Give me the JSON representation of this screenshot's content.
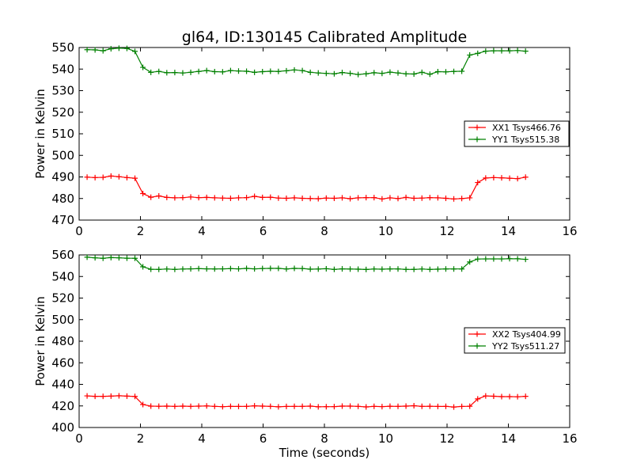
{
  "chart_data": [
    {
      "type": "line",
      "title": "gl64, ID:130145 Calibrated Amplitude",
      "xlabel": "",
      "ylabel": "Power in Kelvin",
      "xlim": [
        0,
        16
      ],
      "ylim": [
        470,
        550
      ],
      "xticks": [
        "0",
        "2",
        "4",
        "6",
        "8",
        "10",
        "12",
        "14",
        "16"
      ],
      "yticks": [
        "470",
        "480",
        "490",
        "500",
        "510",
        "520",
        "530",
        "540",
        "550"
      ],
      "legend_position": "center-right",
      "x": [
        0.26,
        0.52,
        0.78,
        1.04,
        1.3,
        1.56,
        1.82,
        2.08,
        2.34,
        2.6,
        2.86,
        3.12,
        3.38,
        3.64,
        3.9,
        4.16,
        4.42,
        4.68,
        4.94,
        5.2,
        5.46,
        5.72,
        5.98,
        6.24,
        6.5,
        6.76,
        7.02,
        7.28,
        7.54,
        7.8,
        8.06,
        8.32,
        8.58,
        8.84,
        9.1,
        9.36,
        9.62,
        9.88,
        10.14,
        10.4,
        10.66,
        10.92,
        11.18,
        11.44,
        11.7,
        11.96,
        12.22,
        12.48,
        12.74,
        13.0,
        13.26,
        13.52,
        13.78,
        14.04,
        14.3,
        14.56
      ],
      "series": [
        {
          "name": "XX1 Tsys466.76",
          "color": "#ff0000",
          "values": [
            489.9,
            489.7,
            489.8,
            490.4,
            490.1,
            489.7,
            489.4,
            482.3,
            480.6,
            481.2,
            480.5,
            480.3,
            480.4,
            480.7,
            480.4,
            480.5,
            480.3,
            480.2,
            480.1,
            480.3,
            480.4,
            481.0,
            480.5,
            480.6,
            480.2,
            480.1,
            480.3,
            480.1,
            480.0,
            479.9,
            480.2,
            480.1,
            480.3,
            479.9,
            480.3,
            480.4,
            480.4,
            479.8,
            480.3,
            480.0,
            480.5,
            480.1,
            480.2,
            480.4,
            480.3,
            480.1,
            479.8,
            480.0,
            480.3,
            487.4,
            489.5,
            489.7,
            489.6,
            489.4,
            489.2,
            489.9
          ]
        },
        {
          "name": "YY1 Tsys515.38",
          "color": "#008000",
          "values": [
            549.0,
            548.9,
            548.5,
            549.4,
            549.7,
            549.6,
            548.2,
            540.8,
            538.5,
            538.9,
            538.3,
            538.4,
            538.2,
            538.5,
            538.9,
            539.3,
            538.8,
            538.7,
            539.3,
            539.1,
            539.0,
            538.5,
            538.8,
            539.0,
            538.9,
            539.2,
            539.6,
            539.3,
            538.5,
            538.2,
            538.0,
            537.8,
            538.4,
            538.0,
            537.5,
            537.8,
            538.3,
            538.0,
            538.6,
            538.2,
            537.8,
            537.7,
            538.5,
            537.6,
            538.8,
            538.7,
            538.9,
            539.0,
            546.5,
            547.3,
            548.3,
            548.5,
            548.5,
            548.5,
            548.6,
            548.3
          ]
        }
      ]
    },
    {
      "type": "line",
      "title": "",
      "xlabel": "Time (seconds)",
      "ylabel": "Power in Kelvin",
      "xlim": [
        0,
        16
      ],
      "ylim": [
        400,
        560
      ],
      "xticks": [
        "0",
        "2",
        "4",
        "6",
        "8",
        "10",
        "12",
        "14",
        "16"
      ],
      "yticks": [
        "400",
        "420",
        "440",
        "460",
        "480",
        "500",
        "520",
        "540",
        "560"
      ],
      "legend_position": "center-right",
      "x": [
        0.26,
        0.52,
        0.78,
        1.04,
        1.3,
        1.56,
        1.82,
        2.08,
        2.34,
        2.6,
        2.86,
        3.12,
        3.38,
        3.64,
        3.9,
        4.16,
        4.42,
        4.68,
        4.94,
        5.2,
        5.46,
        5.72,
        5.98,
        6.24,
        6.5,
        6.76,
        7.02,
        7.28,
        7.54,
        7.8,
        8.06,
        8.32,
        8.58,
        8.84,
        9.1,
        9.36,
        9.62,
        9.88,
        10.14,
        10.4,
        10.66,
        10.92,
        11.18,
        11.44,
        11.7,
        11.96,
        12.22,
        12.48,
        12.74,
        13.0,
        13.26,
        13.52,
        13.78,
        14.04,
        14.3,
        14.56
      ],
      "series": [
        {
          "name": "XX2 Tsys404.99",
          "color": "#ff0000",
          "values": [
            429.3,
            428.9,
            428.9,
            429.1,
            429.4,
            429.1,
            428.8,
            421.3,
            419.8,
            419.7,
            419.8,
            419.6,
            419.8,
            419.6,
            419.8,
            420.0,
            419.6,
            419.3,
            419.6,
            419.5,
            419.6,
            420.1,
            419.8,
            419.6,
            419.2,
            419.5,
            419.6,
            419.6,
            419.8,
            419.2,
            419.3,
            419.4,
            419.8,
            419.8,
            419.6,
            419.1,
            419.6,
            419.4,
            419.7,
            419.6,
            419.8,
            420.2,
            419.6,
            419.7,
            419.5,
            419.6,
            419.0,
            419.5,
            419.7,
            426.5,
            429.3,
            429.0,
            428.6,
            428.6,
            428.5,
            428.9
          ]
        },
        {
          "name": "YY2 Tsys511.27",
          "color": "#008000",
          "values": [
            557.9,
            557.3,
            556.9,
            557.5,
            557.3,
            557.0,
            556.9,
            549.0,
            546.7,
            546.6,
            546.9,
            546.6,
            546.9,
            547.1,
            547.3,
            547.1,
            547.0,
            547.1,
            547.3,
            547.1,
            547.5,
            547.1,
            547.4,
            547.5,
            547.5,
            547.0,
            547.5,
            547.4,
            546.8,
            546.9,
            547.2,
            546.6,
            547.1,
            546.9,
            546.8,
            546.5,
            546.9,
            546.8,
            547.0,
            547.0,
            546.6,
            546.6,
            546.9,
            546.6,
            546.8,
            547.0,
            547.0,
            547.0,
            553.5,
            556.2,
            556.3,
            556.3,
            556.3,
            556.5,
            556.4,
            555.9
          ]
        }
      ]
    }
  ]
}
